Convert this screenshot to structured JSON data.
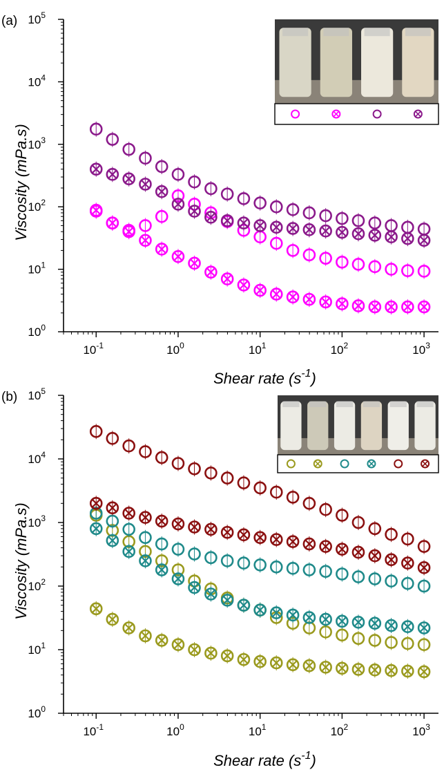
{
  "chart_data": [
    {
      "panel_label": "(a)",
      "type": "scatter",
      "x_scale": "log",
      "y_scale": "log",
      "xlabel": "Shear rate (s",
      "xlabel_exponent": "-1",
      "xlabel_suffix": ")",
      "ylabel": "Viscosity (mPa.s)",
      "xlim": [
        0.04,
        1500
      ],
      "ylim": [
        1,
        100000
      ],
      "x_ticks": [
        0.1,
        1,
        10,
        100,
        1000
      ],
      "x_tick_labels": [
        {
          "base": "10",
          "exp": "-1"
        },
        {
          "base": "10",
          "exp": "0"
        },
        {
          "base": "10",
          "exp": "1"
        },
        {
          "base": "10",
          "exp": "2"
        },
        {
          "base": "10",
          "exp": "3"
        }
      ],
      "y_ticks": [
        1,
        10,
        100,
        1000,
        10000,
        100000
      ],
      "y_tick_labels": [
        {
          "base": "10",
          "exp": "0"
        },
        {
          "base": "10",
          "exp": "1"
        },
        {
          "base": "10",
          "exp": "2"
        },
        {
          "base": "10",
          "exp": "3"
        },
        {
          "base": "10",
          "exp": "4"
        },
        {
          "base": "10",
          "exp": "5"
        }
      ],
      "legend": "inset photo, top-right",
      "x": [
        0.1,
        0.158,
        0.251,
        0.398,
        0.631,
        1,
        1.58,
        2.51,
        3.98,
        6.31,
        10,
        15.8,
        25.1,
        39.8,
        63.1,
        100,
        158,
        251,
        398,
        631,
        1000
      ],
      "series": [
        {
          "marker": "circle",
          "color": "#ff00ff",
          "values": [
            85,
            55,
            42,
            50,
            70,
            150,
            110,
            80,
            58,
            42,
            33,
            26,
            20,
            17,
            15,
            13,
            12,
            11,
            10,
            9.5,
            9.3
          ]
        },
        {
          "marker": "circle-x",
          "color": "#ff00ff",
          "values": [
            88,
            55,
            40,
            29,
            21,
            16,
            12.5,
            9,
            7,
            5.6,
            4.6,
            4,
            3.6,
            3.3,
            3,
            2.8,
            2.6,
            2.5,
            2.5,
            2.5,
            2.5
          ]
        },
        {
          "marker": "circle",
          "color": "#8b1a8b",
          "values": [
            1750,
            1200,
            830,
            600,
            440,
            330,
            250,
            195,
            160,
            135,
            115,
            100,
            90,
            80,
            72,
            65,
            60,
            55,
            50,
            47,
            44
          ]
        },
        {
          "marker": "circle-x",
          "color": "#8b1a8b",
          "values": [
            400,
            330,
            280,
            230,
            175,
            110,
            85,
            68,
            60,
            55,
            50,
            47,
            45,
            43,
            41,
            39,
            37,
            35,
            33,
            31,
            29
          ]
        }
      ]
    },
    {
      "panel_label": "(b)",
      "type": "scatter",
      "x_scale": "log",
      "y_scale": "log",
      "xlabel": "Shear rate (s",
      "xlabel_exponent": "-1",
      "xlabel_suffix": ")",
      "ylabel": "Viscosity (mPa.s)",
      "xlim": [
        0.04,
        1500
      ],
      "ylim": [
        1,
        100000
      ],
      "x_ticks": [
        0.1,
        1,
        10,
        100,
        1000
      ],
      "x_tick_labels": [
        {
          "base": "10",
          "exp": "-1"
        },
        {
          "base": "10",
          "exp": "0"
        },
        {
          "base": "10",
          "exp": "1"
        },
        {
          "base": "10",
          "exp": "2"
        },
        {
          "base": "10",
          "exp": "3"
        }
      ],
      "y_ticks": [
        1,
        10,
        100,
        1000,
        10000,
        100000
      ],
      "y_tick_labels": [
        {
          "base": "10",
          "exp": "0"
        },
        {
          "base": "10",
          "exp": "1"
        },
        {
          "base": "10",
          "exp": "2"
        },
        {
          "base": "10",
          "exp": "3"
        },
        {
          "base": "10",
          "exp": "4"
        },
        {
          "base": "10",
          "exp": "5"
        }
      ],
      "legend": "inset photo, top-right",
      "x": [
        0.1,
        0.158,
        0.251,
        0.398,
        0.631,
        1,
        1.58,
        2.51,
        3.98,
        6.31,
        10,
        15.8,
        25.1,
        39.8,
        63.1,
        100,
        158,
        251,
        398,
        631,
        1000
      ],
      "series": [
        {
          "marker": "circle",
          "color": "#9a9a1e",
          "values": [
            1300,
            750,
            500,
            350,
            250,
            180,
            120,
            90,
            65,
            50,
            42,
            32,
            26,
            22,
            19,
            17,
            15,
            14,
            13,
            12.5,
            12
          ]
        },
        {
          "marker": "circle-x",
          "color": "#9a9a1e",
          "values": [
            44,
            30,
            22,
            16.5,
            14,
            12,
            10,
            8.8,
            8,
            7,
            6.5,
            6.2,
            5.8,
            5.6,
            5.3,
            5.1,
            4.9,
            4.8,
            4.7,
            4.6,
            4.5
          ]
        },
        {
          "marker": "circle",
          "color": "#1f8a8a",
          "values": [
            1400,
            1050,
            780,
            580,
            460,
            380,
            320,
            280,
            250,
            230,
            215,
            200,
            190,
            180,
            170,
            155,
            140,
            130,
            120,
            110,
            100
          ]
        },
        {
          "marker": "circle-x",
          "color": "#1f8a8a",
          "values": [
            800,
            520,
            350,
            250,
            180,
            130,
            95,
            75,
            60,
            50,
            42,
            38,
            35,
            32,
            30,
            28,
            27,
            26,
            24,
            23,
            22
          ]
        },
        {
          "marker": "circle",
          "color": "#8b1010",
          "values": [
            27000,
            21000,
            16000,
            13000,
            10500,
            8500,
            7000,
            6000,
            5000,
            4200,
            3500,
            3000,
            2500,
            2000,
            1600,
            1300,
            1000,
            800,
            650,
            550,
            420
          ]
        },
        {
          "marker": "circle-x",
          "color": "#8b1010",
          "values": [
            2000,
            1700,
            1400,
            1200,
            1050,
            950,
            850,
            780,
            700,
            640,
            580,
            540,
            500,
            460,
            420,
            380,
            340,
            300,
            260,
            230,
            195
          ]
        }
      ]
    }
  ]
}
